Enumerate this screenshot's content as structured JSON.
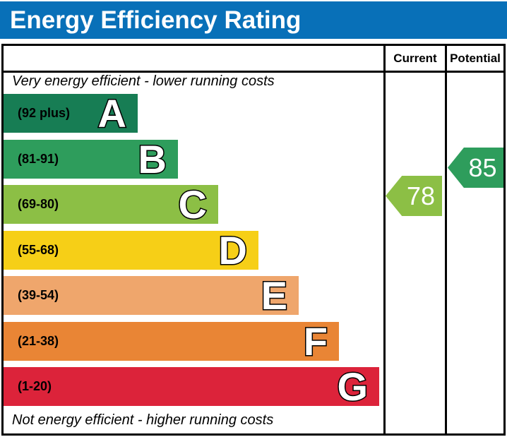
{
  "title": "Energy Efficiency Rating",
  "colors": {
    "title_bar": "#0870b8",
    "border": "#000000"
  },
  "columns": {
    "current": "Current",
    "potential": "Potential"
  },
  "notes": {
    "top": "Very energy efficient - lower running costs",
    "bottom": "Not energy efficient - higher running costs"
  },
  "chart_data": {
    "type": "bar",
    "title": "Energy Efficiency Rating",
    "bands": [
      {
        "letter": "A",
        "range": "(92 plus)",
        "color": "#177d54"
      },
      {
        "letter": "B",
        "range": "(81-91)",
        "color": "#2e9d5c"
      },
      {
        "letter": "C",
        "range": "(69-80)",
        "color": "#8cbf45"
      },
      {
        "letter": "D",
        "range": "(55-68)",
        "color": "#f6cf17"
      },
      {
        "letter": "E",
        "range": "(39-54)",
        "color": "#efa66c"
      },
      {
        "letter": "F",
        "range": "(21-38)",
        "color": "#e98535"
      },
      {
        "letter": "G",
        "range": "(1-20)",
        "color": "#dc233a"
      }
    ],
    "current": {
      "value": 78,
      "band": "C",
      "color": "#8cbf45"
    },
    "potential": {
      "value": 85,
      "band": "B",
      "color": "#2e9d5c"
    }
  }
}
